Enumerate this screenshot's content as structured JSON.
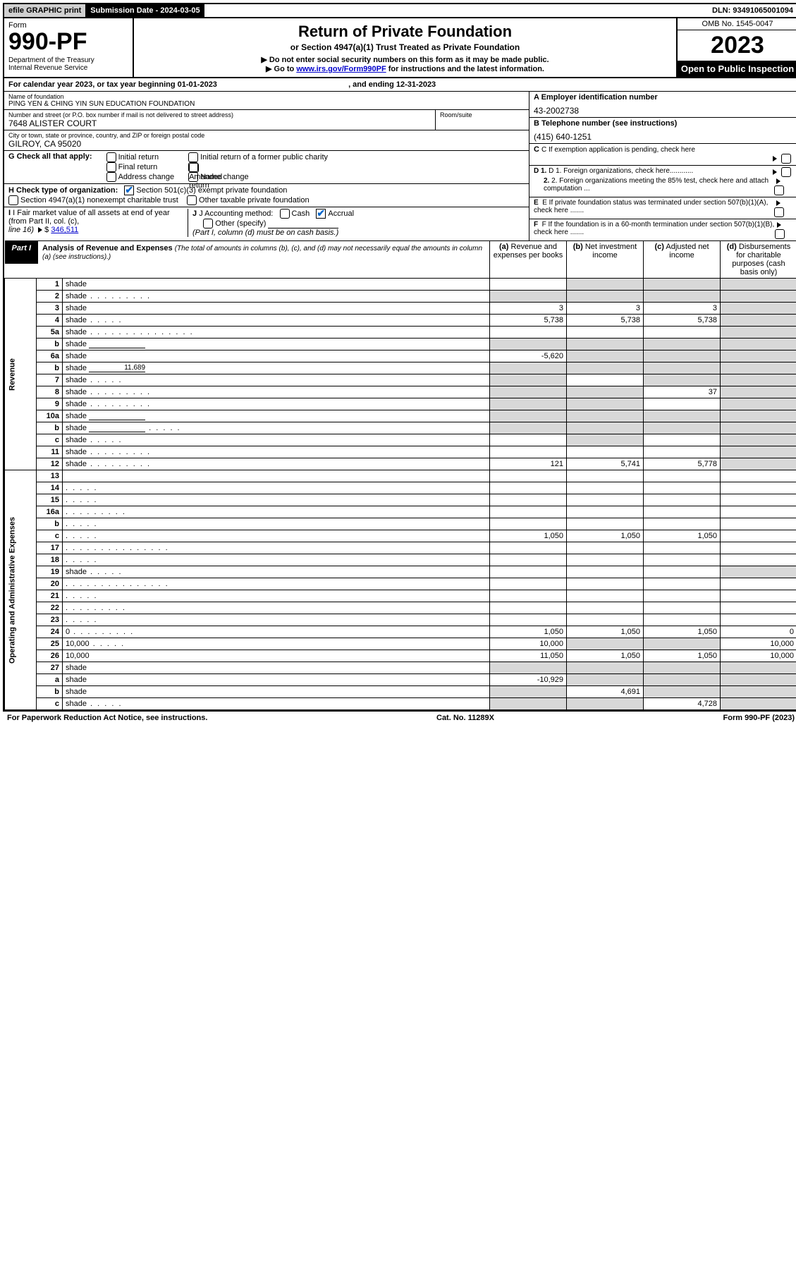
{
  "topbar": {
    "efile": "efile GRAPHIC print",
    "subdate_label": "Submission Date - ",
    "subdate": "2024-03-05",
    "dln_label": "DLN: ",
    "dln": "93491065001094"
  },
  "header": {
    "form_label": "Form",
    "form_no": "990-PF",
    "dept1": "Department of the Treasury",
    "dept2": "Internal Revenue Service",
    "title": "Return of Private Foundation",
    "subtitle": "or Section 4947(a)(1) Trust Treated as Private Foundation",
    "note1": "▶ Do not enter social security numbers on this form as it may be made public.",
    "note2_pre": "▶ Go to ",
    "note2_link": "www.irs.gov/Form990PF",
    "note2_post": " for instructions and the latest information.",
    "omb": "OMB No. 1545-0047",
    "year": "2023",
    "open": "Open to Public Inspection"
  },
  "cal": {
    "text_pre": "For calendar year 2023, or tax year beginning ",
    "begin": "01-01-2023",
    "mid": " , and ending ",
    "end": "12-31-2023"
  },
  "info": {
    "name_lbl": "Name of foundation",
    "name": "PING YEN & CHING YIN SUN EDUCATION FOUNDATION",
    "addr_lbl": "Number and street (or P.O. box number if mail is not delivered to street address)",
    "addr": "7648 ALISTER COURT",
    "room_lbl": "Room/suite",
    "city_lbl": "City or town, state or province, country, and ZIP or foreign postal code",
    "city": "GILROY, CA  95020",
    "A_lbl": "A Employer identification number",
    "A_val": "43-2002738",
    "B_lbl": "B Telephone number (see instructions)",
    "B_val": "(415) 640-1251",
    "C_lbl": "C If exemption application is pending, check here",
    "D1_lbl": "D 1. Foreign organizations, check here............",
    "D2_lbl": "2. Foreign organizations meeting the 85% test, check here and attach computation ...",
    "E_lbl": "E  If private foundation status was terminated under section 507(b)(1)(A), check here .......",
    "F_lbl": "F  If the foundation is in a 60-month termination under section 507(b)(1)(B), check here .......",
    "G_lbl": "G Check all that apply:",
    "G_opts": [
      "Initial return",
      "Final return",
      "Address change",
      "Initial return of a former public charity",
      "Amended return",
      "Name change"
    ],
    "H_lbl": "H Check type of organization:",
    "H1": "Section 501(c)(3) exempt private foundation",
    "H2": "Section 4947(a)(1) nonexempt charitable trust",
    "H3": "Other taxable private foundation",
    "I_lbl": "I Fair market value of all assets at end of year (from Part II, col. (c),",
    "I_lbl2": "line 16) ",
    "I_val": "346,511",
    "J_lbl": "J Accounting method:",
    "J_cash": "Cash",
    "J_acc": "Accrual",
    "J_other": "Other (specify)",
    "J_note": "(Part I, column (d) must be on cash basis.)"
  },
  "part1": {
    "label": "Part I",
    "title": "Analysis of Revenue and Expenses ",
    "note": "(The total of amounts in columns (b), (c), and (d) may not necessarily equal the amounts in column (a) (see instructions).)",
    "col_a": "Revenue and expenses per books",
    "col_b": "Net investment income",
    "col_c": "Adjusted net income",
    "col_d": "Disbursements for charitable purposes (cash basis only)"
  },
  "revenue_label": "Revenue",
  "expenses_label": "Operating and Administrative Expenses",
  "rows_rev": [
    {
      "n": "1",
      "d": "shade",
      "a": "",
      "b": "shade",
      "c": "shade"
    },
    {
      "n": "2",
      "d": "shade",
      "dots": "m",
      "a": "shade",
      "b": "shade",
      "c": "shade"
    },
    {
      "n": "3",
      "d": "shade",
      "a": "3",
      "b": "3",
      "c": "3"
    },
    {
      "n": "4",
      "d": "shade",
      "dots": "s",
      "a": "5,738",
      "b": "5,738",
      "c": "5,738"
    },
    {
      "n": "5a",
      "d": "shade",
      "dots": "l",
      "a": "",
      "b": "",
      "c": ""
    },
    {
      "n": "b",
      "d": "shade",
      "inline": true,
      "a": "shade",
      "b": "shade",
      "c": "shade"
    },
    {
      "n": "6a",
      "d": "shade",
      "a": "-5,620",
      "b": "shade",
      "c": "shade"
    },
    {
      "n": "b",
      "d": "shade",
      "inline": true,
      "inline_val": "11,689",
      "a": "shade",
      "b": "shade",
      "c": "shade"
    },
    {
      "n": "7",
      "d": "shade",
      "dots": "s",
      "a": "shade",
      "b": "",
      "c": "shade"
    },
    {
      "n": "8",
      "d": "shade",
      "dots": "m",
      "a": "shade",
      "b": "shade",
      "c": "37"
    },
    {
      "n": "9",
      "d": "shade",
      "dots": "m",
      "a": "shade",
      "b": "shade",
      "c": ""
    },
    {
      "n": "10a",
      "d": "shade",
      "inline": true,
      "a": "shade",
      "b": "shade",
      "c": "shade"
    },
    {
      "n": "b",
      "d": "shade",
      "dots": "s",
      "inline": true,
      "a": "shade",
      "b": "shade",
      "c": "shade"
    },
    {
      "n": "c",
      "d": "shade",
      "dots": "s",
      "a": "",
      "b": "shade",
      "c": ""
    },
    {
      "n": "11",
      "d": "shade",
      "dots": "m",
      "a": "",
      "b": "",
      "c": ""
    },
    {
      "n": "12",
      "d": "shade",
      "dots": "m",
      "a": "121",
      "b": "5,741",
      "c": "5,778"
    }
  ],
  "rows_exp": [
    {
      "n": "13",
      "d": "",
      "a": "",
      "b": "",
      "c": ""
    },
    {
      "n": "14",
      "d": "",
      "dots": "s",
      "a": "",
      "b": "",
      "c": ""
    },
    {
      "n": "15",
      "d": "",
      "dots": "s",
      "a": "",
      "b": "",
      "c": ""
    },
    {
      "n": "16a",
      "d": "",
      "dots": "m",
      "a": "",
      "b": "",
      "c": ""
    },
    {
      "n": "b",
      "d": "",
      "dots": "s",
      "a": "",
      "b": "",
      "c": ""
    },
    {
      "n": "c",
      "d": "",
      "dots": "s",
      "a": "1,050",
      "b": "1,050",
      "c": "1,050"
    },
    {
      "n": "17",
      "d": "",
      "dots": "l",
      "a": "",
      "b": "",
      "c": ""
    },
    {
      "n": "18",
      "d": "",
      "dots": "s",
      "a": "",
      "b": "",
      "c": ""
    },
    {
      "n": "19",
      "d": "shade",
      "dots": "s",
      "a": "",
      "b": "",
      "c": ""
    },
    {
      "n": "20",
      "d": "",
      "dots": "l",
      "a": "",
      "b": "",
      "c": ""
    },
    {
      "n": "21",
      "d": "",
      "dots": "s",
      "a": "",
      "b": "",
      "c": ""
    },
    {
      "n": "22",
      "d": "",
      "dots": "m",
      "a": "",
      "b": "",
      "c": ""
    },
    {
      "n": "23",
      "d": "",
      "dots": "s",
      "a": "",
      "b": "",
      "c": ""
    },
    {
      "n": "24",
      "d": "0",
      "dots": "m",
      "a": "1,050",
      "b": "1,050",
      "c": "1,050"
    },
    {
      "n": "25",
      "d": "10,000",
      "dots": "s",
      "a": "10,000",
      "b": "shade",
      "c": "shade"
    },
    {
      "n": "26",
      "d": "10,000",
      "a": "11,050",
      "b": "1,050",
      "c": "1,050"
    },
    {
      "n": "27",
      "d": "shade",
      "a": "shade",
      "b": "shade",
      "c": "shade"
    },
    {
      "n": "a",
      "d": "shade",
      "a": "-10,929",
      "b": "shade",
      "c": "shade"
    },
    {
      "n": "b",
      "d": "shade",
      "a": "shade",
      "b": "4,691",
      "c": "shade"
    },
    {
      "n": "c",
      "d": "shade",
      "dots": "s",
      "a": "shade",
      "b": "shade",
      "c": "4,728"
    }
  ],
  "footer": {
    "left": "For Paperwork Reduction Act Notice, see instructions.",
    "mid": "Cat. No. 11289X",
    "right": "Form 990-PF (2023)"
  }
}
